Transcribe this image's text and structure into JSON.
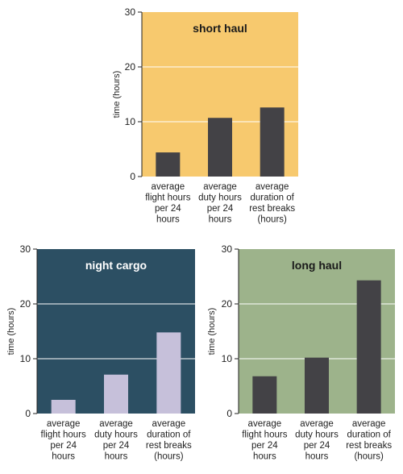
{
  "chart_data": [
    {
      "type": "bar",
      "title": "short haul",
      "ylabel": "time (hours)",
      "ylim": [
        0,
        30
      ],
      "yticks": [
        "0",
        "10",
        "20",
        "30"
      ],
      "categories": [
        [
          "average",
          "flight hours",
          "per 24",
          "hours"
        ],
        [
          "average",
          "duty hours",
          "per 24",
          "hours"
        ],
        [
          "average",
          "duration of",
          "rest breaks",
          "(hours)"
        ]
      ],
      "values": [
        4.4,
        10.7,
        12.6
      ],
      "grid": true,
      "background_color": "#f7c96e",
      "bar_color": "#434246",
      "title_color": "#1a1a1a"
    },
    {
      "type": "bar",
      "title": "night cargo",
      "ylabel": "time (hours)",
      "ylim": [
        0,
        30
      ],
      "yticks": [
        "0",
        "10",
        "20",
        "30"
      ],
      "categories": [
        [
          "average",
          "flight hours",
          "per 24",
          "hours"
        ],
        [
          "average",
          "duty hours",
          "per 24",
          "hours"
        ],
        [
          "average",
          "duration of",
          "rest breaks",
          "(hours)"
        ]
      ],
      "values": [
        2.5,
        7.1,
        14.8
      ],
      "grid": true,
      "background_color": "#2c4f63",
      "bar_color": "#c6c0da",
      "title_color": "#ffffff"
    },
    {
      "type": "bar",
      "title": "long haul",
      "ylabel": "time (hours)",
      "ylim": [
        0,
        30
      ],
      "yticks": [
        "0",
        "10",
        "20",
        "30"
      ],
      "categories": [
        [
          "average",
          "flight hours",
          "per 24",
          "hours"
        ],
        [
          "average",
          "duty hours",
          "per 24",
          "hours"
        ],
        [
          "average",
          "duration of",
          "rest breaks",
          "(hours)"
        ]
      ],
      "values": [
        6.8,
        10.2,
        24.3
      ],
      "grid": true,
      "background_color": "#9db38b",
      "bar_color": "#434246",
      "title_color": "#1a1a1a"
    }
  ]
}
